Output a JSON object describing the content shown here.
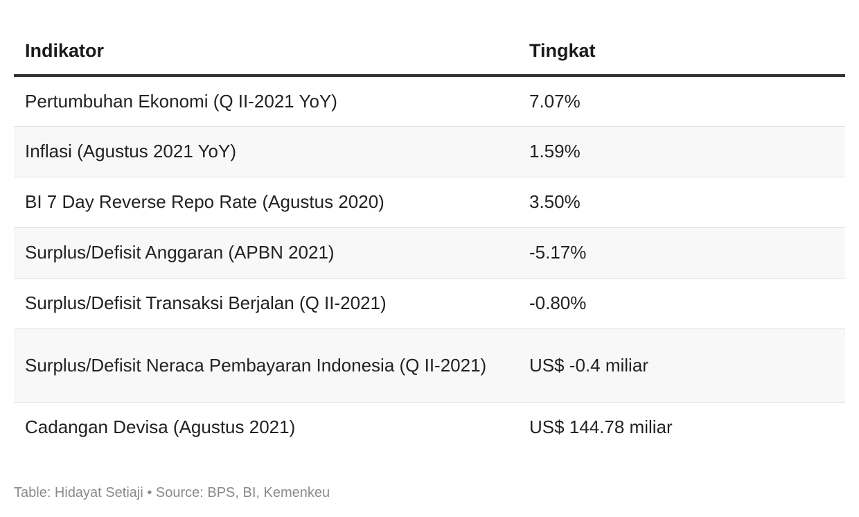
{
  "chart_data": {
    "type": "table",
    "columns": [
      "Indikator",
      "Tingkat"
    ],
    "rows": [
      {
        "indicator": "Pertumbuhan Ekonomi (Q II-2021 YoY)",
        "value": "7.07%"
      },
      {
        "indicator": "Inflasi (Agustus 2021 YoY)",
        "value": "1.59%"
      },
      {
        "indicator": "BI 7 Day Reverse Repo Rate (Agustus 2020)",
        "value": "3.50%"
      },
      {
        "indicator": "Surplus/Defisit Anggaran (APBN 2021)",
        "value": "-5.17%"
      },
      {
        "indicator": "Surplus/Defisit Transaksi Berjalan (Q II-2021)",
        "value": "-0.80%"
      },
      {
        "indicator": "Surplus/Defisit Neraca Pembayaran Indonesia (Q II-2021)",
        "value": "US$ -0.4 miliar"
      },
      {
        "indicator": "Cadangan Devisa (Agustus 2021)",
        "value": "US$ 144.78 miliar"
      }
    ]
  },
  "footer": {
    "credit": "Table: Hidayat Setiaji • Source: BPS, BI, Kemenkeu"
  }
}
